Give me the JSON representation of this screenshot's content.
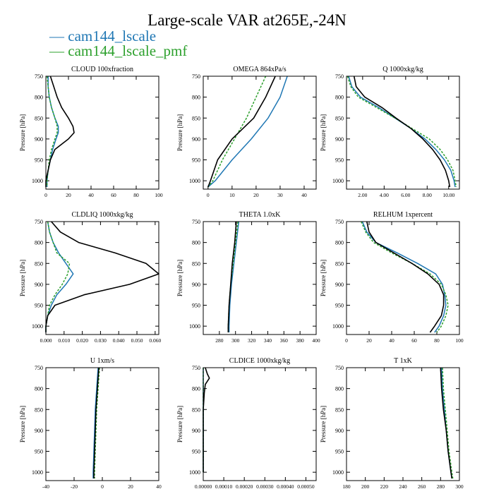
{
  "title": "Large-scale VAR at265E,-24N",
  "colors": {
    "cam144_lscale": "#1f77b4",
    "cam144_lscale_pmf": "#2ca02c",
    "obs": "#000000"
  },
  "legend": [
    {
      "label": "cam144_lscale",
      "color": "#1f77b4"
    },
    {
      "label": "cam144_lscale_pmf",
      "color": "#2ca02c"
    }
  ],
  "chart_data": [
    {
      "type": "line",
      "title": "CLOUD  100xfraction",
      "ylabel": "Pressure [hPa]",
      "xlim": [
        0,
        100
      ],
      "ylim": [
        1020,
        750
      ],
      "xticks": [
        0,
        20,
        40,
        60,
        80,
        100
      ],
      "xticklabels": [
        "0",
        "20",
        "40",
        "60",
        "80",
        "100"
      ],
      "yticks": [
        750,
        800,
        850,
        900,
        950,
        1000
      ],
      "yticklabels": [
        "750",
        "800",
        "850",
        "900",
        "950",
        "1000"
      ],
      "pressure": [
        750,
        775,
        800,
        825,
        850,
        870,
        885,
        900,
        925,
        950,
        975,
        1000,
        1015
      ],
      "series": [
        {
          "name": "cam144_lscale",
          "values": [
            2,
            2,
            3,
            5,
            8,
            11,
            11,
            9,
            6,
            4,
            2,
            1,
            1
          ]
        },
        {
          "name": "cam144_lscale_pmf",
          "values": [
            1,
            2,
            3,
            5,
            8,
            10,
            10,
            8,
            5,
            3,
            2,
            1,
            1
          ]
        },
        {
          "values": [
            4,
            7,
            10,
            14,
            20,
            24,
            25,
            20,
            8,
            4,
            2,
            0,
            0
          ]
        }
      ]
    },
    {
      "type": "line",
      "title": "OMEGA  864xPa/s",
      "ylabel": "Pressure [hPa]",
      "xlim": [
        -2,
        45
      ],
      "ylim": [
        1020,
        750
      ],
      "xticks": [
        0,
        10,
        20,
        30,
        40
      ],
      "xticklabels": [
        "0",
        "10",
        "20",
        "30",
        "40"
      ],
      "yticks": [
        750,
        800,
        850,
        900,
        950,
        1000
      ],
      "yticklabels": [
        "750",
        "800",
        "850",
        "900",
        "950",
        "1000"
      ],
      "pressure": [
        750,
        800,
        850,
        900,
        950,
        1000,
        1015
      ],
      "series": [
        {
          "name": "cam144_lscale",
          "values": [
            33,
            30,
            25,
            18,
            10,
            3,
            0
          ]
        },
        {
          "name": "cam144_lscale_pmf",
          "values": [
            24,
            20,
            16,
            11,
            6,
            2,
            0
          ]
        },
        {
          "values": [
            28,
            24,
            19,
            10,
            4,
            1,
            0
          ]
        }
      ]
    },
    {
      "type": "line",
      "title": "Q  1000xkg/kg",
      "ylabel": "Pressure [hPa]",
      "xlim": [
        0.5,
        11
      ],
      "ylim": [
        1020,
        750
      ],
      "xticks": [
        2,
        4,
        6,
        8,
        10
      ],
      "xticklabels": [
        "2.00",
        "4.00",
        "6.00",
        "8.00",
        "10.00"
      ],
      "yticks": [
        750,
        800,
        850,
        900,
        950,
        1000
      ],
      "yticklabels": [
        "750",
        "800",
        "850",
        "900",
        "950",
        "1000"
      ],
      "pressure": [
        750,
        775,
        800,
        825,
        850,
        875,
        900,
        925,
        950,
        975,
        1000,
        1015
      ],
      "series": [
        {
          "name": "cam144_lscale",
          "values": [
            0.7,
            1.0,
            1.8,
            3.5,
            5.0,
            6.5,
            7.8,
            8.8,
            9.6,
            10.2,
            10.5,
            10.6
          ]
        },
        {
          "name": "cam144_lscale_pmf",
          "values": [
            0.6,
            0.9,
            1.6,
            3.3,
            5.0,
            6.6,
            8.2,
            9.2,
            9.9,
            10.4,
            10.6,
            10.7
          ]
        },
        {
          "values": [
            1.2,
            1.4,
            2.2,
            3.8,
            5.1,
            6.5,
            7.6,
            8.5,
            9.2,
            9.7,
            10.0,
            10.1
          ]
        }
      ]
    },
    {
      "type": "line",
      "title": "CLDLIQ  1000xkg/kg",
      "ylabel": "Pressure [hPa]",
      "xlim": [
        0,
        0.062
      ],
      "ylim": [
        1020,
        750
      ],
      "xticks": [
        0,
        0.01,
        0.02,
        0.03,
        0.04,
        0.05,
        0.06
      ],
      "xticklabels": [
        "0.000",
        "0.010",
        "0.020",
        "0.030",
        "0.040",
        "0.050",
        "0.060"
      ],
      "yticks": [
        750,
        800,
        850,
        900,
        950,
        1000
      ],
      "yticklabels": [
        "750",
        "800",
        "850",
        "900",
        "950",
        "1000"
      ],
      "pressure": [
        750,
        775,
        800,
        825,
        850,
        875,
        900,
        925,
        950,
        975,
        1000,
        1015
      ],
      "series": [
        {
          "name": "cam144_lscale",
          "values": [
            0.001,
            0.002,
            0.004,
            0.007,
            0.011,
            0.015,
            0.011,
            0.006,
            0.003,
            0.001,
            0.0,
            0.0
          ]
        },
        {
          "name": "cam144_lscale_pmf",
          "values": [
            0.001,
            0.002,
            0.004,
            0.006,
            0.013,
            0.012,
            0.009,
            0.005,
            0.002,
            0.001,
            0.0,
            0.0
          ]
        },
        {
          "values": [
            0.003,
            0.008,
            0.018,
            0.038,
            0.055,
            0.062,
            0.046,
            0.021,
            0.005,
            0.001,
            0.0,
            0.0
          ]
        }
      ]
    },
    {
      "type": "line",
      "title": "THETA  1.0xK",
      "ylabel": "Pressure [hPa]",
      "xlim": [
        260,
        400
      ],
      "ylim": [
        1020,
        750
      ],
      "xticks": [
        280,
        300,
        320,
        340,
        360,
        380,
        400
      ],
      "xticklabels": [
        "280",
        "300",
        "320",
        "340",
        "360",
        "380",
        "400"
      ],
      "yticks": [
        750,
        800,
        850,
        900,
        950,
        1000
      ],
      "yticklabels": [
        "750",
        "800",
        "850",
        "900",
        "950",
        "1000"
      ],
      "pressure": [
        750,
        800,
        850,
        900,
        950,
        1000,
        1015
      ],
      "series": [
        {
          "name": "cam144_lscale",
          "values": [
            304,
            301,
            298,
            295,
            293,
            292,
            292
          ]
        },
        {
          "name": "cam144_lscale_pmf",
          "values": [
            303,
            300,
            297,
            294,
            292,
            291,
            291
          ]
        },
        {
          "values": [
            301,
            299,
            296,
            294,
            292,
            291,
            291
          ]
        }
      ]
    },
    {
      "type": "line",
      "title": "RELHUM  1xpercent",
      "ylabel": "Pressure [hPa]",
      "xlim": [
        0,
        100
      ],
      "ylim": [
        1020,
        750
      ],
      "xticks": [
        0,
        20,
        40,
        60,
        80,
        100
      ],
      "xticklabels": [
        "0",
        "20",
        "40",
        "60",
        "80",
        "100"
      ],
      "yticks": [
        750,
        800,
        850,
        900,
        950,
        1000
      ],
      "yticklabels": [
        "750",
        "800",
        "850",
        "900",
        "950",
        "1000"
      ],
      "pressure": [
        750,
        775,
        800,
        825,
        850,
        875,
        900,
        925,
        950,
        975,
        1000,
        1015
      ],
      "series": [
        {
          "name": "cam144_lscale",
          "values": [
            14,
            18,
            26,
            45,
            63,
            79,
            85,
            87,
            88,
            86,
            82,
            78
          ]
        },
        {
          "name": "cam144_lscale_pmf",
          "values": [
            13,
            17,
            24,
            40,
            58,
            74,
            84,
            88,
            90,
            88,
            84,
            80
          ]
        },
        {
          "values": [
            18,
            20,
            26,
            42,
            58,
            72,
            82,
            86,
            86,
            84,
            78,
            74
          ]
        }
      ]
    },
    {
      "type": "line",
      "title": "U  1xm/s",
      "ylabel": "Pressure [hPa]",
      "xlim": [
        -40,
        40
      ],
      "ylim": [
        1020,
        750
      ],
      "xticks": [
        -40,
        -20,
        0,
        20,
        40
      ],
      "xticklabels": [
        "-40",
        "-20",
        "0",
        "20",
        "40"
      ],
      "yticks": [
        750,
        800,
        850,
        900,
        950,
        1000
      ],
      "yticklabels": [
        "750",
        "800",
        "850",
        "900",
        "950",
        "1000"
      ],
      "pressure": [
        750,
        800,
        850,
        900,
        950,
        1000,
        1015
      ],
      "series": [
        {
          "name": "cam144_lscale",
          "values": [
            -3,
            -4,
            -5,
            -5.5,
            -6,
            -6.5,
            -6.5
          ]
        },
        {
          "name": "cam144_lscale_pmf",
          "values": [
            -2,
            -3,
            -4,
            -4.5,
            -5,
            -5.5,
            -5.5
          ]
        },
        {
          "values": [
            -2.5,
            -3.5,
            -4.5,
            -5,
            -5.5,
            -6,
            -6
          ]
        }
      ]
    },
    {
      "type": "line",
      "title": "CLDICE  1000xkg/kg",
      "ylabel": "Pressure [hPa]",
      "xlim": [
        0,
        0.00055
      ],
      "ylim": [
        1020,
        750
      ],
      "xticks": [
        0,
        0.0001,
        0.0002,
        0.0003,
        0.0004,
        0.0005
      ],
      "xticklabels": [
        "0.00000",
        "0.00010",
        "0.00020",
        "0.00030",
        "0.00040",
        "0.00050"
      ],
      "yticks": [
        750,
        800,
        850,
        900,
        950,
        1000
      ],
      "yticklabels": [
        "750",
        "800",
        "850",
        "900",
        "950",
        "1000"
      ],
      "pressure": [
        750,
        765,
        775,
        790,
        810,
        850,
        900,
        1000
      ],
      "series": [
        {
          "name": "cam144_lscale",
          "values": [
            0,
            0,
            0,
            0,
            0,
            0,
            0,
            0
          ]
        },
        {
          "name": "cam144_lscale_pmf",
          "values": [
            0,
            0,
            0,
            0,
            0,
            0,
            0,
            0
          ]
        },
        {
          "values": [
            1e-05,
            2e-05,
            3e-05,
            1e-05,
            5e-06,
            0,
            0,
            0
          ]
        }
      ]
    },
    {
      "type": "line",
      "title": "T  1xK",
      "ylabel": "Pressure [hPa]",
      "xlim": [
        180,
        300
      ],
      "ylim": [
        1020,
        750
      ],
      "xticks": [
        180,
        200,
        220,
        240,
        260,
        280,
        300
      ],
      "xticklabels": [
        "180",
        "200",
        "220",
        "240",
        "260",
        "280",
        "300"
      ],
      "yticks": [
        750,
        800,
        850,
        900,
        950,
        1000
      ],
      "yticklabels": [
        "750",
        "800",
        "850",
        "900",
        "950",
        "1000"
      ],
      "pressure": [
        750,
        800,
        850,
        900,
        950,
        1000,
        1015
      ],
      "series": [
        {
          "name": "cam144_lscale",
          "values": [
            281,
            282,
            284,
            286,
            288,
            291,
            292
          ]
        },
        {
          "name": "cam144_lscale_pmf",
          "values": [
            282,
            283,
            285,
            287,
            289,
            292,
            293
          ]
        },
        {
          "values": [
            280,
            281,
            283,
            286,
            288,
            291,
            292
          ]
        }
      ]
    }
  ]
}
